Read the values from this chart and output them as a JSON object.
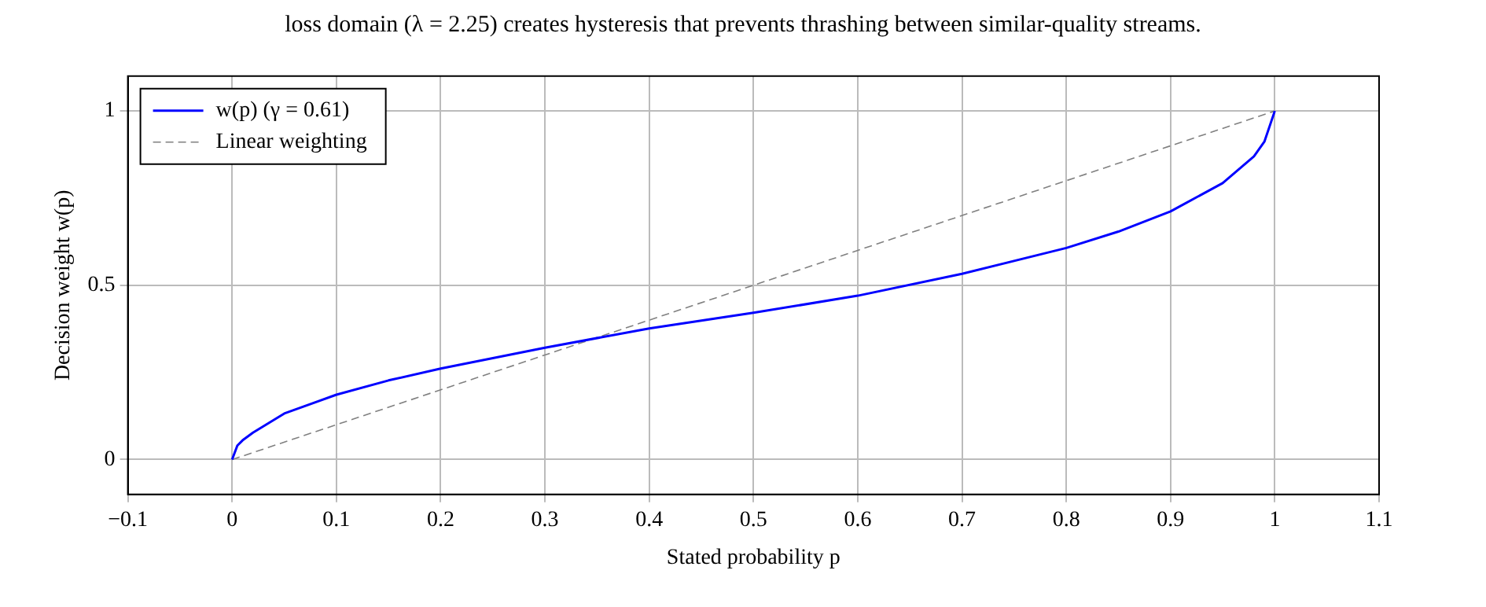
{
  "chart_data": {
    "type": "line",
    "annotations": [
      "loss domain (λ = 2.25) creates hysteresis that prevents thrashing between similar-quality streams."
    ],
    "xlabel": "Stated probability p",
    "ylabel": "Decision weight w(p)",
    "xlim": [
      -0.1,
      1.1
    ],
    "xticks": [
      {
        "value": -0.1,
        "label": "−0.1"
      },
      0,
      0.1,
      0.2,
      0.3,
      0.4,
      0.5,
      0.6,
      0.7,
      0.8,
      0.9,
      1,
      1.1
    ],
    "ylim": [
      -0.1,
      1.1
    ],
    "yticks": [
      0,
      0.5,
      1
    ],
    "grid": true,
    "legend": "top left",
    "marker": "none",
    "series": [
      {
        "name": "w(p) (γ = 0.61)",
        "color": "#0000ff",
        "line_style": "solid",
        "x": [
          0,
          0.005,
          0.01,
          0.02,
          0.05,
          0.1,
          0.15,
          0.2,
          0.3,
          0.4,
          0.5,
          0.6,
          0.7,
          0.8,
          0.85,
          0.9,
          0.95,
          0.98,
          0.99,
          1
        ],
        "values": [
          0,
          0.04,
          0.055,
          0.077,
          0.132,
          0.186,
          0.227,
          0.261,
          0.321,
          0.376,
          0.421,
          0.47,
          0.533,
          0.607,
          0.654,
          0.712,
          0.793,
          0.87,
          0.912,
          1
        ]
      },
      {
        "name": "Linear weighting",
        "color": "#808080",
        "line_style": "dashed",
        "x": [
          0,
          1
        ],
        "values": [
          0,
          1
        ]
      }
    ]
  }
}
